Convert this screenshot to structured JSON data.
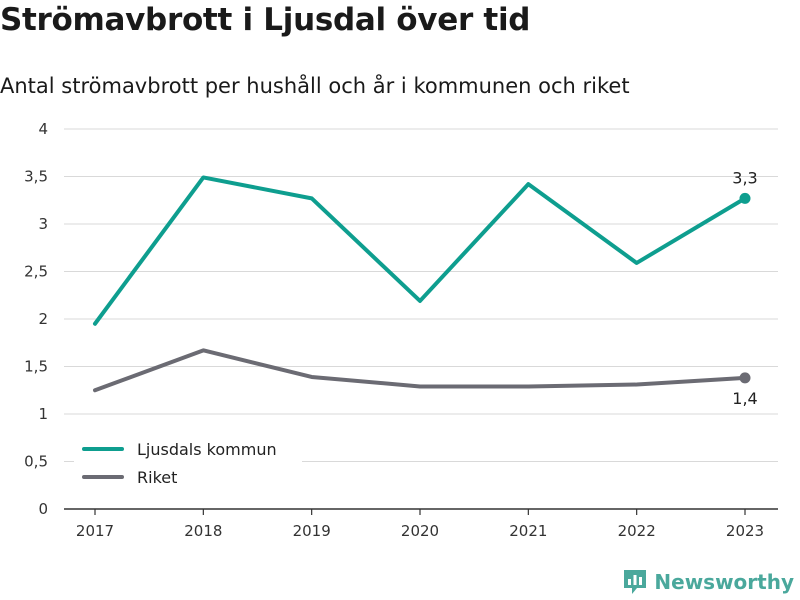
{
  "header": {
    "title": "Strömavbrott i Ljusdal över tid",
    "subtitle": "Antal strömavbrott per hushåll och år i kommunen och riket"
  },
  "brand": {
    "name": "Newsworthy",
    "icon": "newsworthy-logo-icon"
  },
  "colors": {
    "ljusdal": "#0e9e8f",
    "riket": "#6b6b73",
    "grid": "#d9d9d9",
    "axis": "#333333",
    "brand": "#4aa89c"
  },
  "chart_data": {
    "type": "line",
    "x": [
      "2017",
      "2018",
      "2019",
      "2020",
      "2021",
      "2022",
      "2023"
    ],
    "y_ticks": [
      "0",
      "0,5",
      "1",
      "1,5",
      "2",
      "2,5",
      "3",
      "3,5",
      "4"
    ],
    "ylim": [
      0,
      4
    ],
    "grid": true,
    "legend_position": "bottom-left",
    "series": [
      {
        "name": "Ljusdals kommun",
        "values": [
          1.95,
          3.49,
          3.27,
          2.19,
          3.42,
          2.59,
          3.27
        ],
        "end_label": "3,3",
        "color_key": "ljusdal"
      },
      {
        "name": "Riket",
        "values": [
          1.25,
          1.67,
          1.39,
          1.29,
          1.29,
          1.31,
          1.38
        ],
        "end_label": "1,4",
        "color_key": "riket"
      }
    ]
  }
}
